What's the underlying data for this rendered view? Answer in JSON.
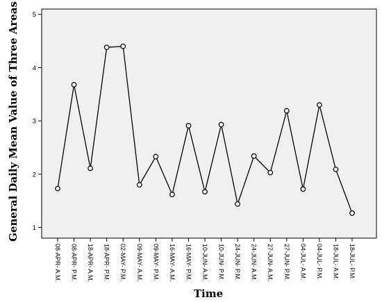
{
  "chart_data": {
    "type": "line",
    "xlabel": "Time",
    "ylabel": "General Daily Mean Value of Three Areas",
    "ylim": [
      0.8,
      5.1
    ],
    "yticks": [
      "1",
      "2",
      "3",
      "4",
      "5"
    ],
    "grid": false,
    "categories": [
      "08-APR- A.M.",
      "08-APR- P.M.",
      "18-APR- A.M.",
      "18-APR- P.M.",
      "02-MAY- P.M.",
      "09-MAY- A.M.",
      "09-MAY- P.M.",
      "16-MAY- A.M.",
      "16-MAY- P.M.",
      "10-JUN- A.M.",
      "10-JUN- P.M.",
      "24-JUN- P.M.",
      "24-JUN- A.M.",
      "27-JUN- A.M.",
      "27-JUN- P.M.",
      "04-JUL- A.M.",
      "04-JUL- P.M.",
      "18-JUL- A.M.",
      "18-JUL- P.M."
    ],
    "values": [
      1.73,
      3.68,
      2.11,
      4.38,
      4.4,
      1.8,
      2.33,
      1.62,
      2.91,
      1.67,
      2.93,
      1.44,
      2.34,
      2.03,
      3.19,
      1.72,
      3.3,
      2.09,
      1.27
    ],
    "colors": {
      "plot_bg": "#f0f0f0",
      "line": "#000000",
      "marker_fill": "#f0f0f0"
    }
  }
}
